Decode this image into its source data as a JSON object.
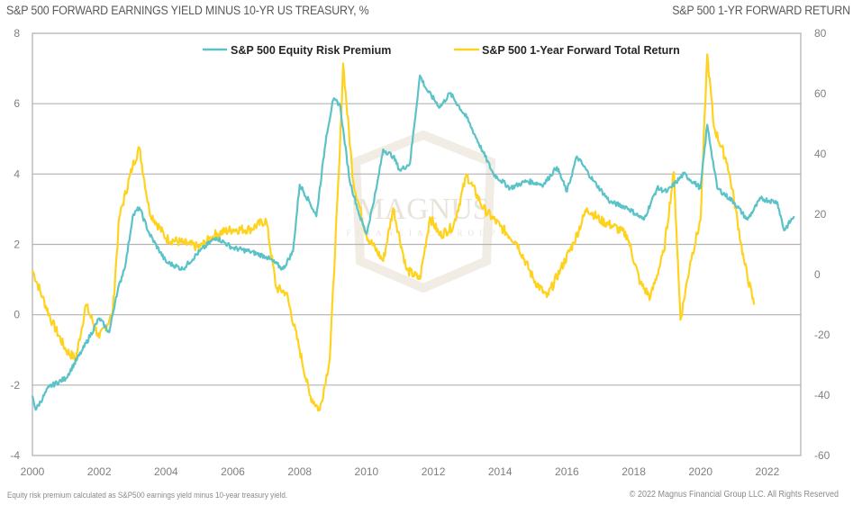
{
  "chart_data": {
    "type": "line",
    "title": "S&P 500 FORWARD EARNINGS YIELD MINUS 10-YR US TREASURY, %",
    "right_title": "S&P 500 1-YR FORWARD RETURN",
    "xlabel": "",
    "ylabel": "S&P 500 Forward Earnings Yield minus 10-Yr US Treasury, %",
    "y2label": "S&P 500 1-Yr Forward Return",
    "xlim": [
      2000,
      2023
    ],
    "ylim": [
      -4,
      8
    ],
    "y2lim": [
      -60,
      80
    ],
    "grid": true,
    "legend_position": "top-center",
    "x_ticks": [
      "2000",
      "2002",
      "2004",
      "2006",
      "2008",
      "2010",
      "2012",
      "2014",
      "2016",
      "2018",
      "2020",
      "2022"
    ],
    "y_ticks": [
      "-4",
      "-2",
      "0",
      "2",
      "4",
      "6",
      "8"
    ],
    "y2_ticks": [
      "-60",
      "-40",
      "-20",
      "0",
      "20",
      "40",
      "60",
      "80"
    ],
    "series": [
      {
        "name": "S&P 500 Equity Risk Premium",
        "axis": "left",
        "color": "#5bc3c8",
        "x": [
          2000.0,
          2000.1,
          2000.5,
          2001.0,
          2001.5,
          2002.0,
          2002.3,
          2002.5,
          2002.8,
          2003.0,
          2003.2,
          2003.5,
          2004.0,
          2004.5,
          2005.0,
          2005.5,
          2006.0,
          2006.5,
          2007.0,
          2007.5,
          2007.8,
          2008.0,
          2008.3,
          2008.5,
          2008.8,
          2009.0,
          2009.2,
          2009.5,
          2009.8,
          2010.0,
          2010.3,
          2010.5,
          2010.8,
          2011.0,
          2011.3,
          2011.6,
          2011.8,
          2012.2,
          2012.5,
          2013.0,
          2013.5,
          2013.8,
          2014.3,
          2014.8,
          2015.3,
          2015.7,
          2016.0,
          2016.3,
          2016.8,
          2017.3,
          2017.8,
          2018.3,
          2018.7,
          2019.0,
          2019.5,
          2020.0,
          2020.2,
          2020.5,
          2021.0,
          2021.4,
          2021.8,
          2022.3,
          2022.5,
          2022.8
        ],
        "values": [
          -2.3,
          -2.7,
          -2.05,
          -1.8,
          -1.0,
          -0.1,
          -0.5,
          0.5,
          1.5,
          2.8,
          3.05,
          2.3,
          1.5,
          1.3,
          1.8,
          2.2,
          1.9,
          1.8,
          1.65,
          1.3,
          1.8,
          3.7,
          3.2,
          2.8,
          5.1,
          6.1,
          6.0,
          3.8,
          2.8,
          2.3,
          3.6,
          4.7,
          4.5,
          4.1,
          4.3,
          6.8,
          6.4,
          5.9,
          6.3,
          5.6,
          4.6,
          4.0,
          3.6,
          3.8,
          3.7,
          4.2,
          3.5,
          4.5,
          3.8,
          3.2,
          3.05,
          2.7,
          3.6,
          3.5,
          4.0,
          3.6,
          5.4,
          3.6,
          3.2,
          2.7,
          3.3,
          3.2,
          2.4,
          2.8
        ]
      },
      {
        "name": "S&P 500 1-Year Forward Total Return",
        "axis": "right",
        "color": "#ffd21f",
        "x": [
          2000.0,
          2000.3,
          2000.6,
          2001.0,
          2001.3,
          2001.6,
          2002.0,
          2002.4,
          2002.6,
          2003.0,
          2003.2,
          2003.5,
          2004.0,
          2004.5,
          2005.0,
          2005.5,
          2006.0,
          2006.5,
          2007.0,
          2007.3,
          2007.6,
          2008.0,
          2008.3,
          2008.6,
          2008.9,
          2009.2,
          2009.3,
          2009.6,
          2010.0,
          2010.5,
          2010.8,
          2011.2,
          2011.6,
          2011.9,
          2012.2,
          2012.6,
          2013.0,
          2013.5,
          2014.0,
          2014.5,
          2015.0,
          2015.4,
          2015.8,
          2016.2,
          2016.6,
          2017.0,
          2017.4,
          2017.8,
          2018.2,
          2018.5,
          2018.9,
          2019.2,
          2019.4,
          2019.7,
          2020.0,
          2020.2,
          2020.4,
          2020.8,
          2021.0,
          2021.3,
          2021.6
        ],
        "values": [
          1.5,
          -7.5,
          -16,
          -25,
          -28,
          -10,
          -21,
          -13,
          19,
          36,
          42,
          21,
          12,
          10.5,
          9,
          13.5,
          15,
          15,
          18,
          -4.5,
          -6,
          -25,
          -40,
          -45,
          -28,
          40,
          70,
          31,
          13,
          4.5,
          22,
          1.5,
          -1.5,
          19,
          13,
          16,
          33,
          22,
          16,
          10.5,
          -1.5,
          -7.5,
          1.5,
          10.5,
          22,
          18,
          16,
          13,
          -3,
          -7.5,
          7.5,
          34,
          -15,
          4.5,
          18,
          73,
          49,
          37,
          25,
          4.5,
          -10
        ]
      }
    ]
  },
  "footer": {
    "note": "Equity risk premium calculated as S&P500 earnings yield minus 10-year treasury yield.",
    "copyright": "© 2022 Magnus Financial Group LLC. All Rights Reserved"
  },
  "watermark": {
    "name": "MAGNUS",
    "sub": "FINANCIAL GROUP"
  }
}
